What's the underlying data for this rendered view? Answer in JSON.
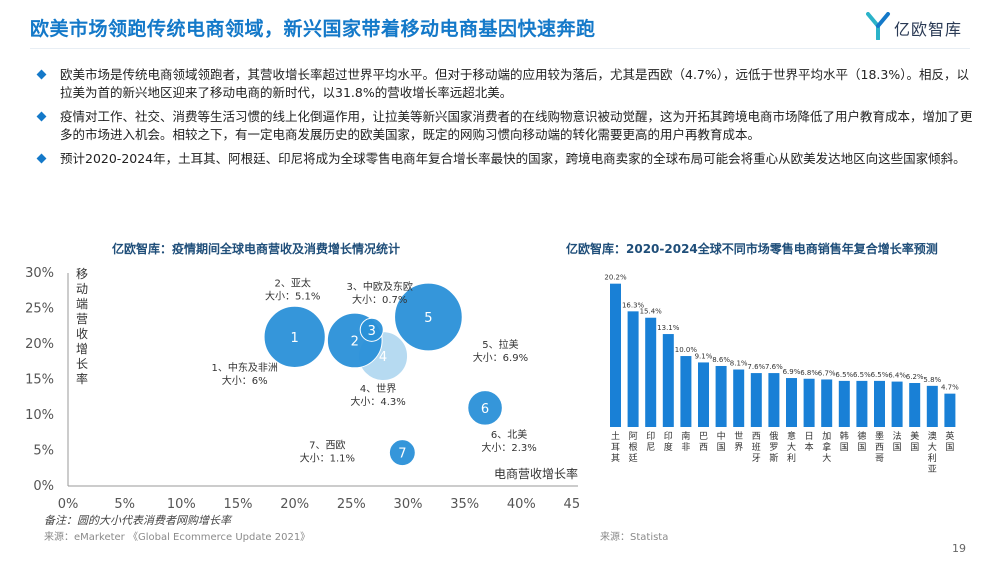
{
  "header": {
    "title": "欧美市场领跑传统电商领域，新兴国家带着移动电商基因快速奔跑",
    "logo_text": "亿欧智库"
  },
  "bullets": [
    "欧美市场是传统电商领域领跑者，其营收增长率超过世界平均水平。但对于移动端的应用较为落后，尤其是西欧（4.7%），远低于世界平均水平（18.3%）。相反，以拉美为首的新兴地区迎来了移动电商的新时代，以31.8%的营收增长率远超北美。",
    "疫情对工作、社交、消费等生活习惯的线上化倒逼作用，让拉美等新兴国家消费者的在线购物意识被动觉醒，这为开拓其跨境电商市场降低了用户教育成本，增加了更多的市场进入机会。相较之下，有一定电商发展历史的欧美国家，既定的网购习惯向移动端的转化需要更高的用户再教育成本。",
    "预计2020-2024年，土耳其、阿根廷、印尼将成为全球零售电商年复合增长率最快的国家，跨境电商卖家的全球布局可能会将重心从欧美发达地区向这些国家倾斜。"
  ],
  "page_number": "19",
  "left_chart": {
    "note": "备注：圆的大小代表消费者网购增长率",
    "source": "来源：eMarketer 《Global Ecommerce Update 2021》"
  },
  "right_chart": {
    "source": "来源：Statista"
  },
  "colors": {
    "brand_blue": "#1479c9",
    "bubble": "#2a90d8",
    "bubble_light": "#a9d3ef",
    "bar": "#1980d6",
    "axis": "#999999"
  },
  "chart_data": [
    {
      "type": "scatter",
      "title": "亿欧智库：疫情期间全球电商营收及消费增长情况统计",
      "xlabel": "电商营收增长率",
      "ylabel": "移动端营收增长率",
      "xlim": [
        0,
        45
      ],
      "ylim": [
        0,
        30
      ],
      "xticks": [
        "0%",
        "5%",
        "10%",
        "15%",
        "20%",
        "25%",
        "30%",
        "35%",
        "40%",
        "45%"
      ],
      "yticks": [
        "0%",
        "5%",
        "10%",
        "15%",
        "20%",
        "25%",
        "30%"
      ],
      "grid": false,
      "points": [
        {
          "id": "1",
          "region": "1、中东及非洲",
          "size_label": "大小：6%",
          "x": 20,
          "y": 21,
          "size": 6,
          "light": false
        },
        {
          "id": "2",
          "region": "2、亚太",
          "size_label": "大小：5.1%",
          "x": 25.3,
          "y": 20.5,
          "size": 5.1,
          "light": false
        },
        {
          "id": "3",
          "region": "3、中欧及东欧",
          "size_label": "大小：0.7%",
          "x": 26.8,
          "y": 22,
          "size": 0.7,
          "light": false
        },
        {
          "id": "4",
          "region": "4、世界",
          "size_label": "大小：4.3%",
          "x": 27.8,
          "y": 18.3,
          "size": 4.3,
          "light": true
        },
        {
          "id": "5",
          "region": "5、拉美",
          "size_label": "大小：6.9%",
          "x": 31.8,
          "y": 23.8,
          "size": 6.9,
          "light": false
        },
        {
          "id": "6",
          "region": "6、北美",
          "size_label": "大小：2.3%",
          "x": 36.8,
          "y": 11,
          "size": 2.3,
          "light": false
        },
        {
          "id": "7",
          "region": "7、西欧",
          "size_label": "大小：1.1%",
          "x": 29.5,
          "y": 4.7,
          "size": 1.1,
          "light": false
        }
      ]
    },
    {
      "type": "bar",
      "title": "亿欧智库：2020-2024全球不同市场零售电商销售年复合增长率预测",
      "categories": [
        "土耳其",
        "阿根廷",
        "印尼",
        "印度",
        "南非",
        "巴西",
        "中国",
        "世界",
        "西班牙",
        "俄罗斯",
        "意大利",
        "日本",
        "加拿大",
        "韩国",
        "德国",
        "墨西哥",
        "法国",
        "美国",
        "澳大利亚",
        "英国"
      ],
      "values": [
        20.2,
        16.3,
        15.4,
        13.1,
        10.0,
        9.1,
        8.6,
        8.1,
        7.6,
        7.6,
        6.9,
        6.8,
        6.7,
        6.5,
        6.5,
        6.5,
        6.4,
        6.2,
        5.8,
        4.7
      ],
      "value_labels": [
        "20.2%",
        "16.3%",
        "15.4%",
        "13.1%",
        "10.0%",
        "9.1%",
        "8.6%",
        "8.1%",
        "7.6%",
        "7.6%",
        "6.9%",
        "6.8%",
        "6.7%",
        "6.5%",
        "6.5%",
        "6.5%",
        "6.4%",
        "6.2%",
        "5.8%",
        "4.7%"
      ],
      "ylim": [
        0,
        21
      ]
    }
  ]
}
